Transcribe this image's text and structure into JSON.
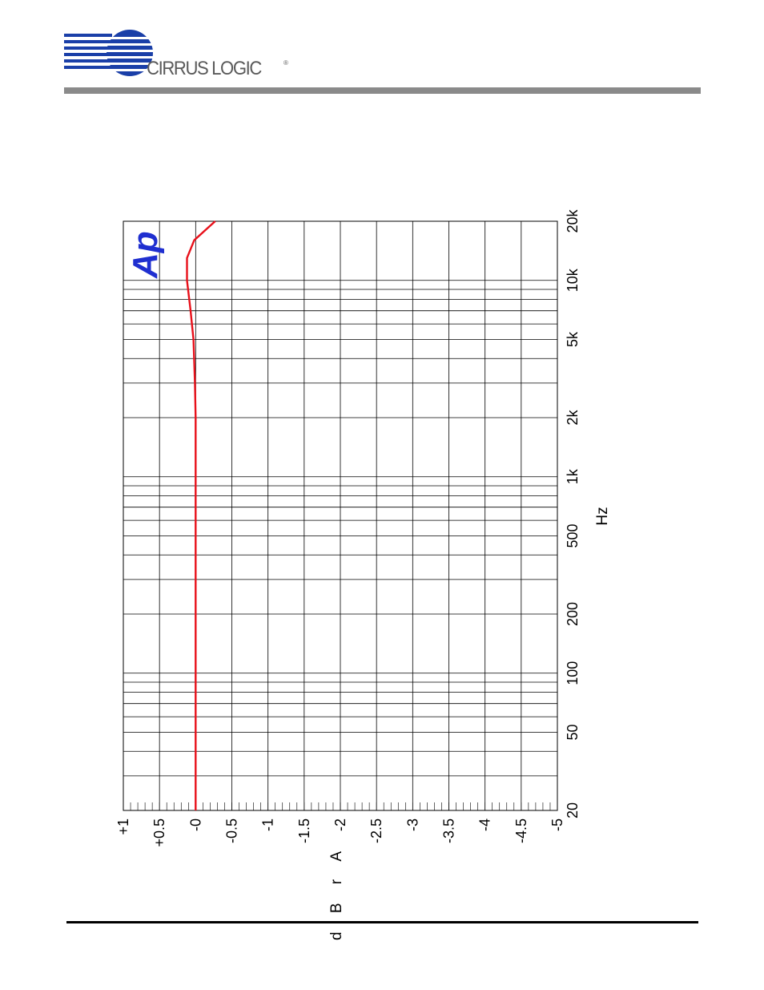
{
  "header": {
    "brand_name": "CIRRUS LOGIC",
    "brand_mark": "®",
    "logo_icon": "cirrus-logic-globe-icon",
    "rule_color": "#8a8a8a"
  },
  "chart_data": {
    "type": "line",
    "orientation": "rotated-90",
    "xlabel": "Hz",
    "ylabel": "d B r A",
    "x_scale": "log",
    "xlim": [
      20,
      20000
    ],
    "ylim": [
      -5,
      1
    ],
    "grid": true,
    "x_ticks": [
      "20",
      "50",
      "100",
      "200",
      "500",
      "1k",
      "2k",
      "5k",
      "10k",
      "20k"
    ],
    "x_tick_values": [
      20,
      50,
      100,
      200,
      500,
      1000,
      2000,
      5000,
      10000,
      20000
    ],
    "y_ticks": [
      "+1",
      "+0.5",
      "-0",
      "-0.5",
      "-1",
      "-1.5",
      "-2",
      "-2.5",
      "-3",
      "-3.5",
      "-4",
      "-4.5",
      "-5"
    ],
    "y_tick_values": [
      1,
      0.5,
      0,
      -0.5,
      -1,
      -1.5,
      -2,
      -2.5,
      -3,
      -3.5,
      -4,
      -4.5,
      -5
    ],
    "series": [
      {
        "color": "#e8101a",
        "x": [
          20,
          50,
          100,
          200,
          500,
          1000,
          2000,
          3000,
          5000,
          7000,
          10000,
          13000,
          16000,
          20000
        ],
        "y": [
          0,
          0,
          0,
          0,
          0,
          0,
          0,
          0.01,
          0.03,
          0.07,
          0.12,
          0.12,
          0.02,
          -0.27
        ]
      }
    ],
    "badge": "Ap",
    "badge_color": "#1f2fd0",
    "badge_icon": "audio-precision-logo-icon"
  }
}
